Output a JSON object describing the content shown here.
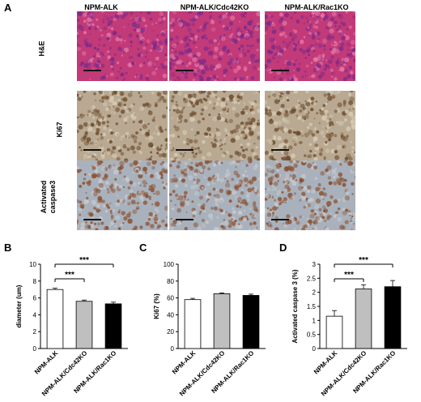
{
  "panel_a": {
    "letter": "A",
    "columns": [
      "NPM-ALK",
      "NPM-ALK/Cdc42KO",
      "NPM-ALK/Rac1KO"
    ],
    "rows": [
      {
        "label_lines": [
          "H&E"
        ],
        "stain": "he",
        "bg": "#c23a78",
        "spot": "#7a2a8a",
        "spot2": "#e87aa8"
      },
      {
        "label_lines": [
          "Ki67"
        ],
        "stain": "ki67",
        "bg": "#b9a992",
        "spot": "#6b4a2a",
        "spot2": "#d9cdb6"
      },
      {
        "label_lines": [
          "Activated",
          "caspase3"
        ],
        "stain": "casp",
        "bg": "#a9b2bc",
        "spot": "#8a4a28",
        "spot2": "#c8ccd2"
      }
    ]
  },
  "chart_data": [
    {
      "panel": "B",
      "type": "bar",
      "categories": [
        "NPM-ALK",
        "NPM-ALK/Cdc42KO",
        "NPM-ALK/Rac1KO"
      ],
      "values": [
        7.0,
        5.6,
        5.3
      ],
      "errors": [
        0.15,
        0.15,
        0.2
      ],
      "colors": [
        "#ffffff",
        "#bfbfbf",
        "#000000"
      ],
      "ylabel": "diameter (um)",
      "ylim": [
        0,
        10
      ],
      "yticks": [
        0,
        2,
        4,
        6,
        8,
        10
      ],
      "significance": [
        {
          "from": 0,
          "to": 1,
          "label": "***"
        },
        {
          "from": 0,
          "to": 2,
          "label": "***"
        }
      ]
    },
    {
      "panel": "C",
      "type": "bar",
      "categories": [
        "NPM-ALK",
        "NPM-ALK/Cdc42KO",
        "NPM-ALK/Rac1KO"
      ],
      "values": [
        58,
        65,
        63
      ],
      "errors": [
        1.5,
        1,
        1.5
      ],
      "colors": [
        "#ffffff",
        "#bfbfbf",
        "#000000"
      ],
      "ylabel": "Ki67 (%)",
      "ylim": [
        0,
        100
      ],
      "yticks": [
        0,
        20,
        40,
        60,
        80,
        100
      ],
      "significance": []
    },
    {
      "panel": "D",
      "type": "bar",
      "categories": [
        "NPM-ALK",
        "NPM-ALK/Cdc42KO",
        "NPM-ALK/Rac1KO"
      ],
      "values": [
        1.15,
        2.12,
        2.2
      ],
      "errors": [
        0.2,
        0.15,
        0.22
      ],
      "colors": [
        "#ffffff",
        "#bfbfbf",
        "#000000"
      ],
      "ylabel": "Activated caspase 3 (%)",
      "ylim": [
        0,
        3
      ],
      "yticks": [
        0,
        0.5,
        1,
        1.5,
        2,
        2.5,
        3
      ],
      "significance": [
        {
          "from": 0,
          "to": 1,
          "label": "***"
        },
        {
          "from": 0,
          "to": 2,
          "label": "***"
        }
      ]
    }
  ]
}
